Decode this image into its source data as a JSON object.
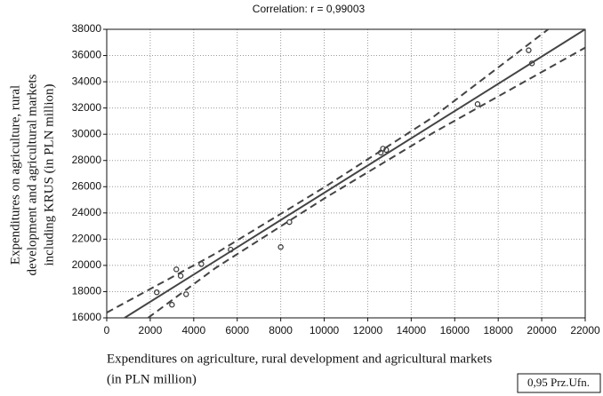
{
  "chart_data": {
    "type": "scatter",
    "title": "Correlation: r =   0,99003",
    "xlabel": [
      "Expenditures on agriculture, rural development and agricultural markets",
      "(in PLN million)"
    ],
    "ylabel": [
      "Expenditures on agriculture, rural",
      "development and agricultural markets",
      "including KRUS (in PLN million)"
    ],
    "annotation": "0,95 Prz.Ufn.",
    "xlim": [
      0,
      22000
    ],
    "ylim": [
      16000,
      38000
    ],
    "xticks": [
      0,
      2000,
      4000,
      6000,
      8000,
      10000,
      12000,
      14000,
      16000,
      18000,
      20000,
      22000
    ],
    "yticks": [
      16000,
      18000,
      20000,
      22000,
      24000,
      26000,
      28000,
      30000,
      32000,
      34000,
      36000,
      38000
    ],
    "grid": true,
    "series": [
      {
        "type": "scatter",
        "color": "#333333",
        "x": [
          2300,
          3000,
          3200,
          3400,
          3650,
          4350,
          5700,
          8000,
          8400,
          12600,
          12700,
          12850,
          17050,
          19400,
          19550
        ],
        "y": [
          17950,
          17000,
          19700,
          19200,
          17800,
          20100,
          21200,
          21400,
          23300,
          28600,
          28900,
          28800,
          32300,
          36400,
          35400
        ]
      },
      {
        "type": "line",
        "style": "solid",
        "color": "#444444",
        "x": [
          820,
          22000
        ],
        "y": [
          16000,
          38000
        ]
      },
      {
        "type": "line",
        "style": "dashed",
        "color": "#444444",
        "x": [
          0,
          5000,
          10000,
          15000,
          20300
        ],
        "y": [
          16400,
          20900,
          25950,
          31300,
          38000
        ]
      },
      {
        "type": "line",
        "style": "dashed",
        "color": "#444444",
        "x": [
          1900,
          5000,
          10000,
          15000,
          22000
        ],
        "y": [
          16000,
          19800,
          25100,
          30100,
          36600
        ]
      }
    ]
  }
}
